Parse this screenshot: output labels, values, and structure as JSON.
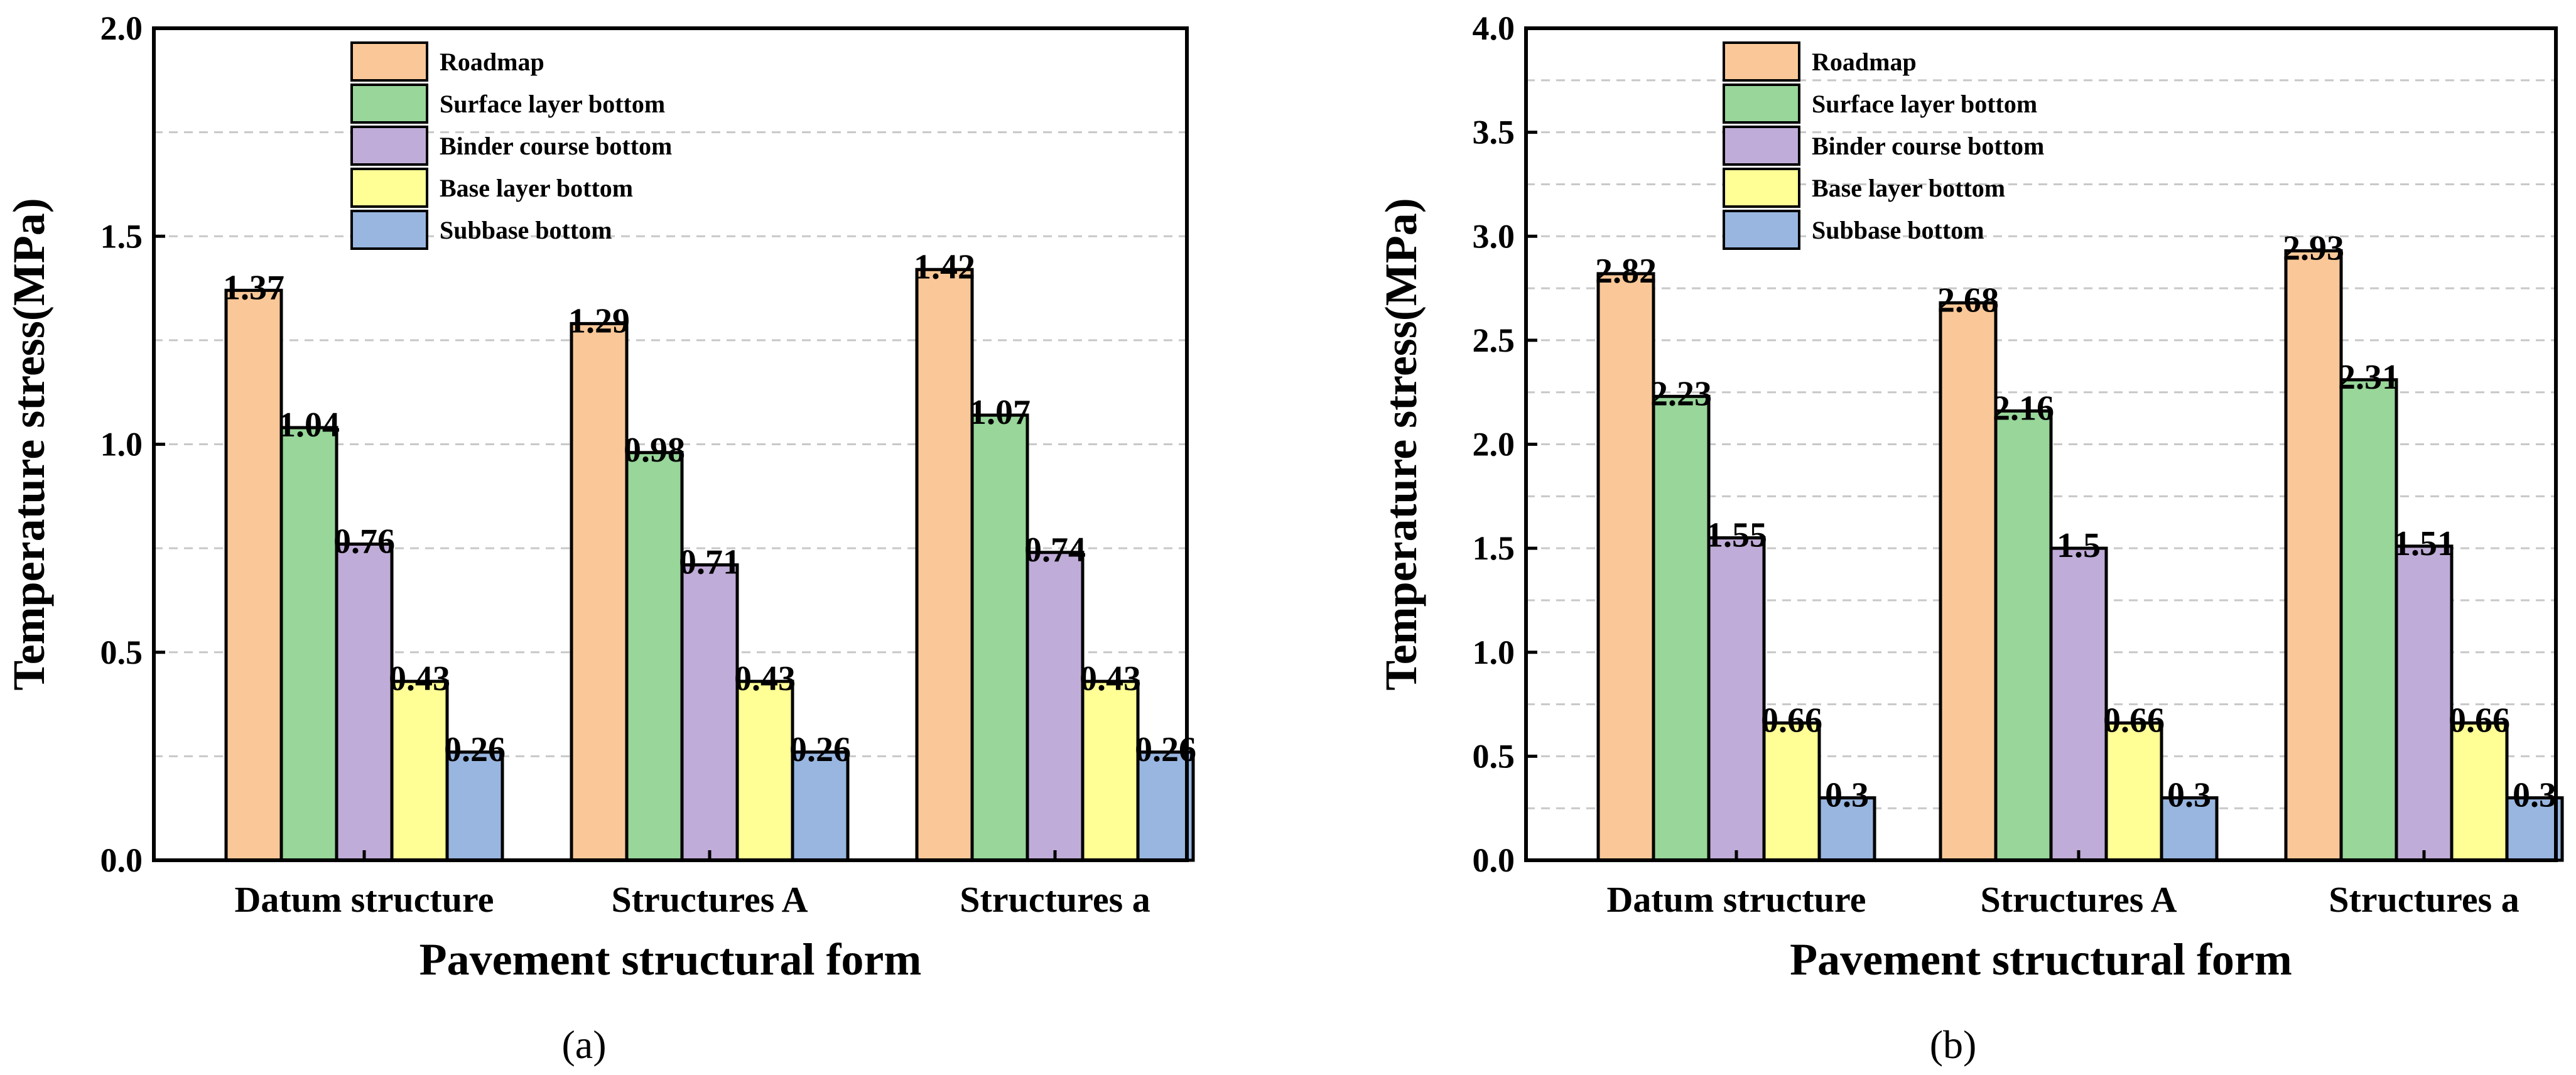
{
  "chart_data": [
    {
      "type": "bar",
      "panel": "(a)",
      "xlabel": "Pavement structural form",
      "ylabel": "Temperature stress(MPa)",
      "ylim": [
        0,
        2.0
      ],
      "yticks": [
        "0.0",
        "0.5",
        "1.0",
        "1.5",
        "2.0"
      ],
      "ytick_values": [
        0,
        0.5,
        1.0,
        1.5,
        2.0
      ],
      "grid": "dashed horizontal",
      "legend_position": "top-center",
      "categories": [
        "Datum structure",
        "Structures A",
        "Structures a"
      ],
      "series": [
        {
          "name": "Roadmap",
          "color": "#FAC898",
          "values": [
            1.37,
            1.29,
            1.42
          ],
          "labels": [
            "1.37",
            "1.29",
            "1.42"
          ]
        },
        {
          "name": "Surface layer bottom",
          "color": "#98D69A",
          "values": [
            1.04,
            0.98,
            1.07
          ],
          "labels": [
            "1.04",
            "0.98",
            "1.07"
          ]
        },
        {
          "name": "Binder course bottom",
          "color": "#C0ACD8",
          "values": [
            0.76,
            0.71,
            0.74
          ],
          "labels": [
            "0.76",
            "0.71",
            "0.74"
          ]
        },
        {
          "name": "Base layer bottom",
          "color": "#FFFF96",
          "values": [
            0.43,
            0.43,
            0.43
          ],
          "labels": [
            "0.43",
            "0.43",
            "0.43"
          ]
        },
        {
          "name": "Subbase bottom",
          "color": "#98B6E0",
          "values": [
            0.26,
            0.26,
            0.26
          ],
          "labels": [
            "0.26",
            "0.26",
            "0.26"
          ]
        }
      ]
    },
    {
      "type": "bar",
      "panel": "(b)",
      "xlabel": "Pavement structural form",
      "ylabel": "Temperature stress(MPa)",
      "ylim": [
        0,
        4.0
      ],
      "yticks": [
        "0.0",
        "0.5",
        "1.0",
        "1.5",
        "2.0",
        "2.5",
        "3.0",
        "3.5",
        "4.0"
      ],
      "ytick_values": [
        0,
        0.5,
        1.0,
        1.5,
        2.0,
        2.5,
        3.0,
        3.5,
        4.0
      ],
      "grid": "dashed horizontal",
      "legend_position": "top-center",
      "categories": [
        "Datum structure",
        "Structures A",
        "Structures a"
      ],
      "series": [
        {
          "name": "Roadmap",
          "color": "#FAC898",
          "values": [
            2.82,
            2.68,
            2.93
          ],
          "labels": [
            "2.82",
            "2.68",
            "2.93"
          ]
        },
        {
          "name": "Surface layer bottom",
          "color": "#98D69A",
          "values": [
            2.23,
            2.16,
            2.31
          ],
          "labels": [
            "2.23",
            "2.16",
            "2.31"
          ]
        },
        {
          "name": "Binder course bottom",
          "color": "#C0ACD8",
          "values": [
            1.55,
            1.5,
            1.51
          ],
          "labels": [
            "1.55",
            "1.5",
            "1.51"
          ]
        },
        {
          "name": "Base layer bottom",
          "color": "#FFFF96",
          "values": [
            0.66,
            0.66,
            0.66
          ],
          "labels": [
            "0.66",
            "0.66",
            "0.66"
          ]
        },
        {
          "name": "Subbase bottom",
          "color": "#98B6E0",
          "values": [
            0.3,
            0.3,
            0.3
          ],
          "labels": [
            "0.3",
            "0.3",
            "0.3"
          ]
        }
      ]
    }
  ]
}
